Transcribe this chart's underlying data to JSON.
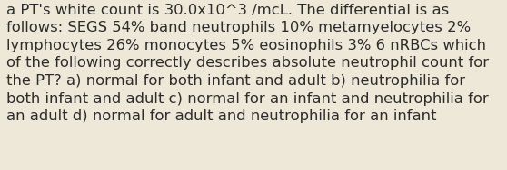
{
  "lines": [
    "a PT's white count is 30.0x10^3 /mcL. The differential is as",
    "follows: SEGS 54% band neutrophils 10% metamyelocytes 2%",
    "lymphocytes 26% monocytes 5% eosinophils 3% 6 nRBCs which",
    "of the following correctly describes absolute neutrophil count for",
    "the PT? a) normal for both infant and adult b) neutrophilia for",
    "both infant and adult c) normal for an infant and neutrophilia for",
    "an adult d) normal for adult and neutrophilia for an infant"
  ],
  "background_color": "#ede8d8",
  "text_color": "#2c2c2c",
  "font_size": 11.8,
  "fig_width": 5.58,
  "fig_height": 1.88,
  "dpi": 100
}
